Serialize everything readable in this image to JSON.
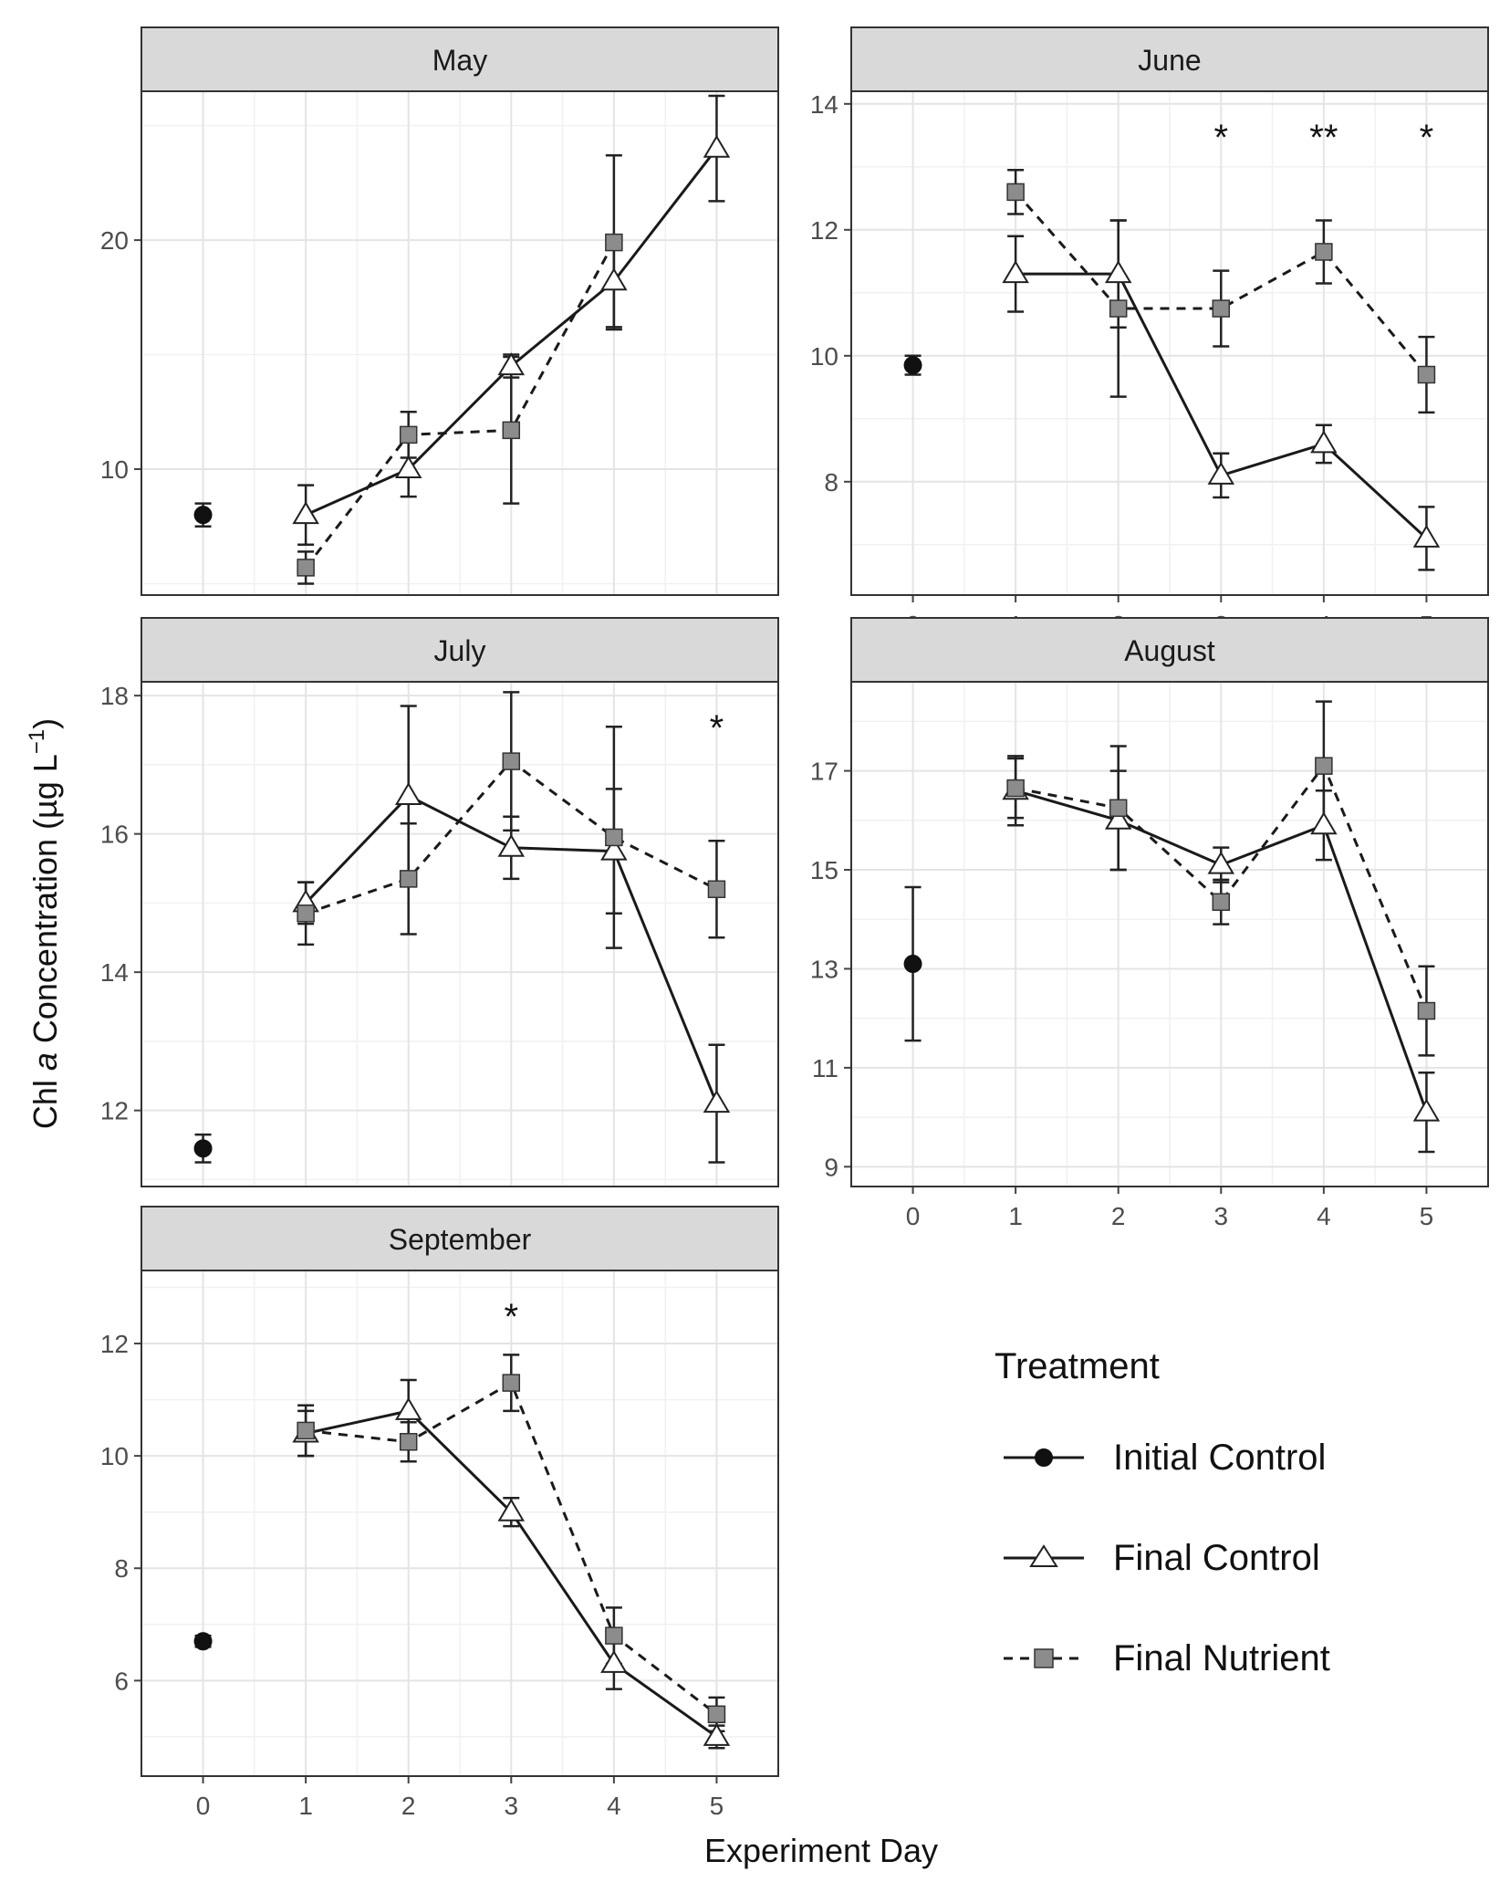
{
  "figure": {
    "ylabel_main": "Chl ",
    "ylabel_italic": "a",
    "ylabel_rest": " Concentration (µg L",
    "ylabel_sup": "−1",
    "ylabel_close": ")",
    "xlabel": "Experiment Day"
  },
  "legend": {
    "title": "Treatment",
    "items": [
      {
        "label": "Initial Control",
        "marker": "circle",
        "line": "solid"
      },
      {
        "label": "Final Control",
        "marker": "triangle",
        "line": "solid"
      },
      {
        "label": "Final Nutrient",
        "marker": "square",
        "line": "dashed"
      }
    ]
  },
  "colors": {
    "strip": "#d9d9d9",
    "grid_major": "#e4e4e4",
    "grid_minor": "#f1f1f1",
    "initial_marker": "#111111",
    "final_control_marker": "#ffffff",
    "final_nutrient_marker": "#8c8c8c",
    "line": "#1a1a1a"
  },
  "chart_data": [
    {
      "type": "line",
      "title": "May",
      "xlabel": "Experiment Day",
      "ylabel": "Chl a Concentration (µg L−1)",
      "x_ticks": [
        "0",
        "1",
        "2",
        "3",
        "4",
        "5"
      ],
      "y_ticks": [
        10,
        20
      ],
      "y_tick_labels": [
        "10",
        "20"
      ],
      "ylim": [
        4.5,
        26.5
      ],
      "series": [
        {
          "name": "Initial Control",
          "points": [
            {
              "x": 0,
              "y": 8.0,
              "err": 0.5
            }
          ]
        },
        {
          "name": "Final Control",
          "points": [
            {
              "x": 1,
              "y": 8.0,
              "err": 1.3
            },
            {
              "x": 2,
              "y": 10.0,
              "err": 1.2
            },
            {
              "x": 3,
              "y": 14.5,
              "err": 0.5
            },
            {
              "x": 4,
              "y": 18.2,
              "err": 2.0
            },
            {
              "x": 5,
              "y": 24.0,
              "err": 2.3
            }
          ]
        },
        {
          "name": "Final Nutrient",
          "points": [
            {
              "x": 1,
              "y": 5.7,
              "err": 0.7
            },
            {
              "x": 2,
              "y": 11.5,
              "err": 1.0
            },
            {
              "x": 3,
              "y": 11.7,
              "err": 3.2
            },
            {
              "x": 4,
              "y": 19.9,
              "err": 3.8
            }
          ]
        }
      ],
      "annotations": []
    },
    {
      "type": "line",
      "title": "June",
      "xlabel": "Experiment Day",
      "ylabel": "Chl a Concentration (µg L−1)",
      "x_ticks": [
        "0",
        "1",
        "2",
        "3",
        "4",
        "5"
      ],
      "y_ticks": [
        8,
        10,
        12,
        14
      ],
      "y_tick_labels": [
        "8",
        "10",
        "12",
        "14"
      ],
      "ylim": [
        6.2,
        14.2
      ],
      "series": [
        {
          "name": "Initial Control",
          "points": [
            {
              "x": 0,
              "y": 9.85,
              "err": 0.15
            }
          ]
        },
        {
          "name": "Final Control",
          "points": [
            {
              "x": 1,
              "y": 11.3,
              "err": 0.6
            },
            {
              "x": 2,
              "y": 11.3,
              "err": 0.85
            },
            {
              "x": 3,
              "y": 8.1,
              "err": 0.35
            },
            {
              "x": 4,
              "y": 8.6,
              "err": 0.3
            },
            {
              "x": 5,
              "y": 7.1,
              "err": 0.5
            }
          ]
        },
        {
          "name": "Final Nutrient",
          "points": [
            {
              "x": 1,
              "y": 12.6,
              "err": 0.35
            },
            {
              "x": 2,
              "y": 10.75,
              "err": 1.4
            },
            {
              "x": 3,
              "y": 10.75,
              "err": 0.6
            },
            {
              "x": 4,
              "y": 11.65,
              "err": 0.5
            },
            {
              "x": 5,
              "y": 9.7,
              "err": 0.6
            }
          ]
        }
      ],
      "annotations": [
        {
          "x": 3,
          "label": "*"
        },
        {
          "x": 4,
          "label": "**"
        },
        {
          "x": 5,
          "label": "*"
        }
      ]
    },
    {
      "type": "line",
      "title": "July",
      "xlabel": "Experiment Day",
      "ylabel": "Chl a Concentration (µg L−1)",
      "x_ticks": [
        "0",
        "1",
        "2",
        "3",
        "4",
        "5"
      ],
      "y_ticks": [
        12,
        14,
        16,
        18
      ],
      "y_tick_labels": [
        "12",
        "14",
        "16",
        "18"
      ],
      "ylim": [
        10.9,
        18.2
      ],
      "series": [
        {
          "name": "Initial Control",
          "points": [
            {
              "x": 0,
              "y": 11.45,
              "err": 0.2
            }
          ]
        },
        {
          "name": "Final Control",
          "points": [
            {
              "x": 1,
              "y": 15.0,
              "err": 0.3
            },
            {
              "x": 2,
              "y": 16.55,
              "err": 1.3
            },
            {
              "x": 3,
              "y": 15.8,
              "err": 0.45
            },
            {
              "x": 4,
              "y": 15.75,
              "err": 0.9
            },
            {
              "x": 5,
              "y": 12.1,
              "err": 0.85
            }
          ]
        },
        {
          "name": "Final Nutrient",
          "points": [
            {
              "x": 1,
              "y": 14.85,
              "err": 0.45
            },
            {
              "x": 2,
              "y": 15.35,
              "err": 0.8
            },
            {
              "x": 3,
              "y": 17.05,
              "err": 1.0
            },
            {
              "x": 4,
              "y": 15.95,
              "err": 1.6
            },
            {
              "x": 5,
              "y": 15.2,
              "err": 0.7
            }
          ]
        }
      ],
      "annotations": [
        {
          "x": 5,
          "label": "*"
        }
      ]
    },
    {
      "type": "line",
      "title": "August",
      "xlabel": "Experiment Day",
      "ylabel": "Chl a Concentration (µg L−1)",
      "x_ticks": [
        "0",
        "1",
        "2",
        "3",
        "4",
        "5"
      ],
      "x_tick_labels_visible": true,
      "y_ticks": [
        9,
        11,
        13,
        15,
        17
      ],
      "y_tick_labels": [
        "9",
        "11",
        "13",
        "15",
        "17"
      ],
      "ylim": [
        8.6,
        18.8
      ],
      "series": [
        {
          "name": "Initial Control",
          "points": [
            {
              "x": 0,
              "y": 13.1,
              "err": 1.55
            }
          ]
        },
        {
          "name": "Final Control",
          "points": [
            {
              "x": 1,
              "y": 16.6,
              "err": 0.7
            },
            {
              "x": 2,
              "y": 16.0,
              "err": 1.0
            },
            {
              "x": 3,
              "y": 15.1,
              "err": 0.35
            },
            {
              "x": 4,
              "y": 15.9,
              "err": 0.7
            },
            {
              "x": 5,
              "y": 10.1,
              "err": 0.8
            }
          ]
        },
        {
          "name": "Final Nutrient",
          "points": [
            {
              "x": 1,
              "y": 16.65,
              "err": 0.6
            },
            {
              "x": 2,
              "y": 16.25,
              "err": 1.25
            },
            {
              "x": 3,
              "y": 14.35,
              "err": 0.45
            },
            {
              "x": 4,
              "y": 17.1,
              "err": 1.3
            },
            {
              "x": 5,
              "y": 12.15,
              "err": 0.9
            }
          ]
        }
      ],
      "annotations": []
    },
    {
      "type": "line",
      "title": "September",
      "xlabel": "Experiment Day",
      "ylabel": "Chl a Concentration (µg L−1)",
      "x_ticks": [
        "0",
        "1",
        "2",
        "3",
        "4",
        "5"
      ],
      "x_tick_labels_visible": true,
      "y_ticks": [
        6,
        8,
        10,
        12
      ],
      "y_tick_labels": [
        "6",
        "8",
        "10",
        "12"
      ],
      "ylim": [
        4.3,
        13.3
      ],
      "series": [
        {
          "name": "Initial Control",
          "points": [
            {
              "x": 0,
              "y": 6.7,
              "err": 0.1
            }
          ]
        },
        {
          "name": "Final Control",
          "points": [
            {
              "x": 1,
              "y": 10.4,
              "err": 0.4
            },
            {
              "x": 2,
              "y": 10.8,
              "err": 0.55
            },
            {
              "x": 3,
              "y": 9.0,
              "err": 0.25
            },
            {
              "x": 4,
              "y": 6.3,
              "err": 0.45
            },
            {
              "x": 5,
              "y": 5.0,
              "err": 0.2
            }
          ]
        },
        {
          "name": "Final Nutrient",
          "points": [
            {
              "x": 1,
              "y": 10.45,
              "err": 0.45
            },
            {
              "x": 2,
              "y": 10.25,
              "err": 0.35
            },
            {
              "x": 3,
              "y": 11.3,
              "err": 0.5
            },
            {
              "x": 4,
              "y": 6.8,
              "err": 0.5
            },
            {
              "x": 5,
              "y": 5.4,
              "err": 0.3
            }
          ]
        }
      ],
      "annotations": [
        {
          "x": 3,
          "label": "*"
        }
      ]
    }
  ]
}
